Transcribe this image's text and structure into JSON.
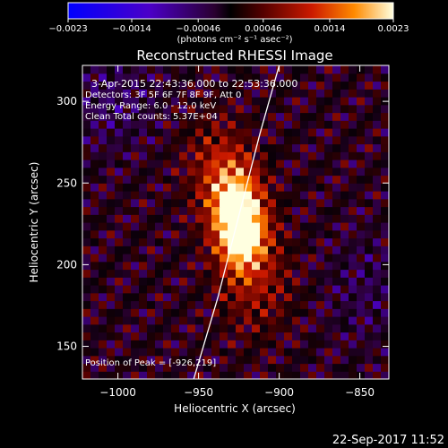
{
  "chart_data": {
    "type": "heatmap",
    "title": "Reconstructed RHESSI Image",
    "xlabel": "Heliocentric X (arcsec)",
    "ylabel": "Heliocentric Y (arcsec)",
    "xlim": [
      -1022,
      -832
    ],
    "ylim": [
      130,
      322
    ],
    "x_ticks": [
      -1000,
      -950,
      -900,
      -850
    ],
    "x_tick_labels": [
      "−1000",
      "−950",
      "−900",
      "−850"
    ],
    "y_ticks": [
      150,
      200,
      250,
      300
    ],
    "y_tick_labels": [
      "150",
      "200",
      "250",
      "300"
    ],
    "colorbar": {
      "min": -0.0023,
      "max": 0.0023,
      "tick_values": [
        -0.0023,
        -0.0014,
        -0.00046,
        0.00046,
        0.0014,
        0.0023
      ],
      "tick_labels": [
        "−0.0023",
        "−0.0014",
        "−0.00046",
        "0.00046",
        "0.0014",
        "0.0023"
      ],
      "units": "(photons cm⁻² s⁻¹ asec⁻²)"
    },
    "annotations": [
      "3-Apr-2015 22:43:36.000 to 22:53:36.000",
      "Detectors: 3F 5F 6F 7F 8F 9F, Att 0",
      "Energy Range: 6.0 - 12.0 keV",
      "Clean    Total counts: 5.37E+04"
    ],
    "peak_label": "Position of Peak = [-926,219]",
    "peak": [
      -926,
      219
    ],
    "limb_curve": [
      [
        -953,
        130
      ],
      [
        -938,
        180
      ],
      [
        -925,
        230
      ],
      [
        -912,
        280
      ],
      [
        -900,
        322
      ]
    ],
    "sources": [
      {
        "x": -928,
        "y": 240,
        "sx": 12,
        "sy": 18,
        "amp": 0.00185
      },
      {
        "x": -923,
        "y": 219,
        "sx": 10,
        "sy": 15,
        "amp": 0.0023
      },
      {
        "x": -915,
        "y": 190,
        "sx": 16,
        "sy": 22,
        "amp": 0.00075
      },
      {
        "x": -940,
        "y": 265,
        "sx": 14,
        "sy": 20,
        "amp": 0.0006
      }
    ],
    "grid": false
  },
  "footer": {
    "datetime": "22-Sep-2017 11:52"
  }
}
